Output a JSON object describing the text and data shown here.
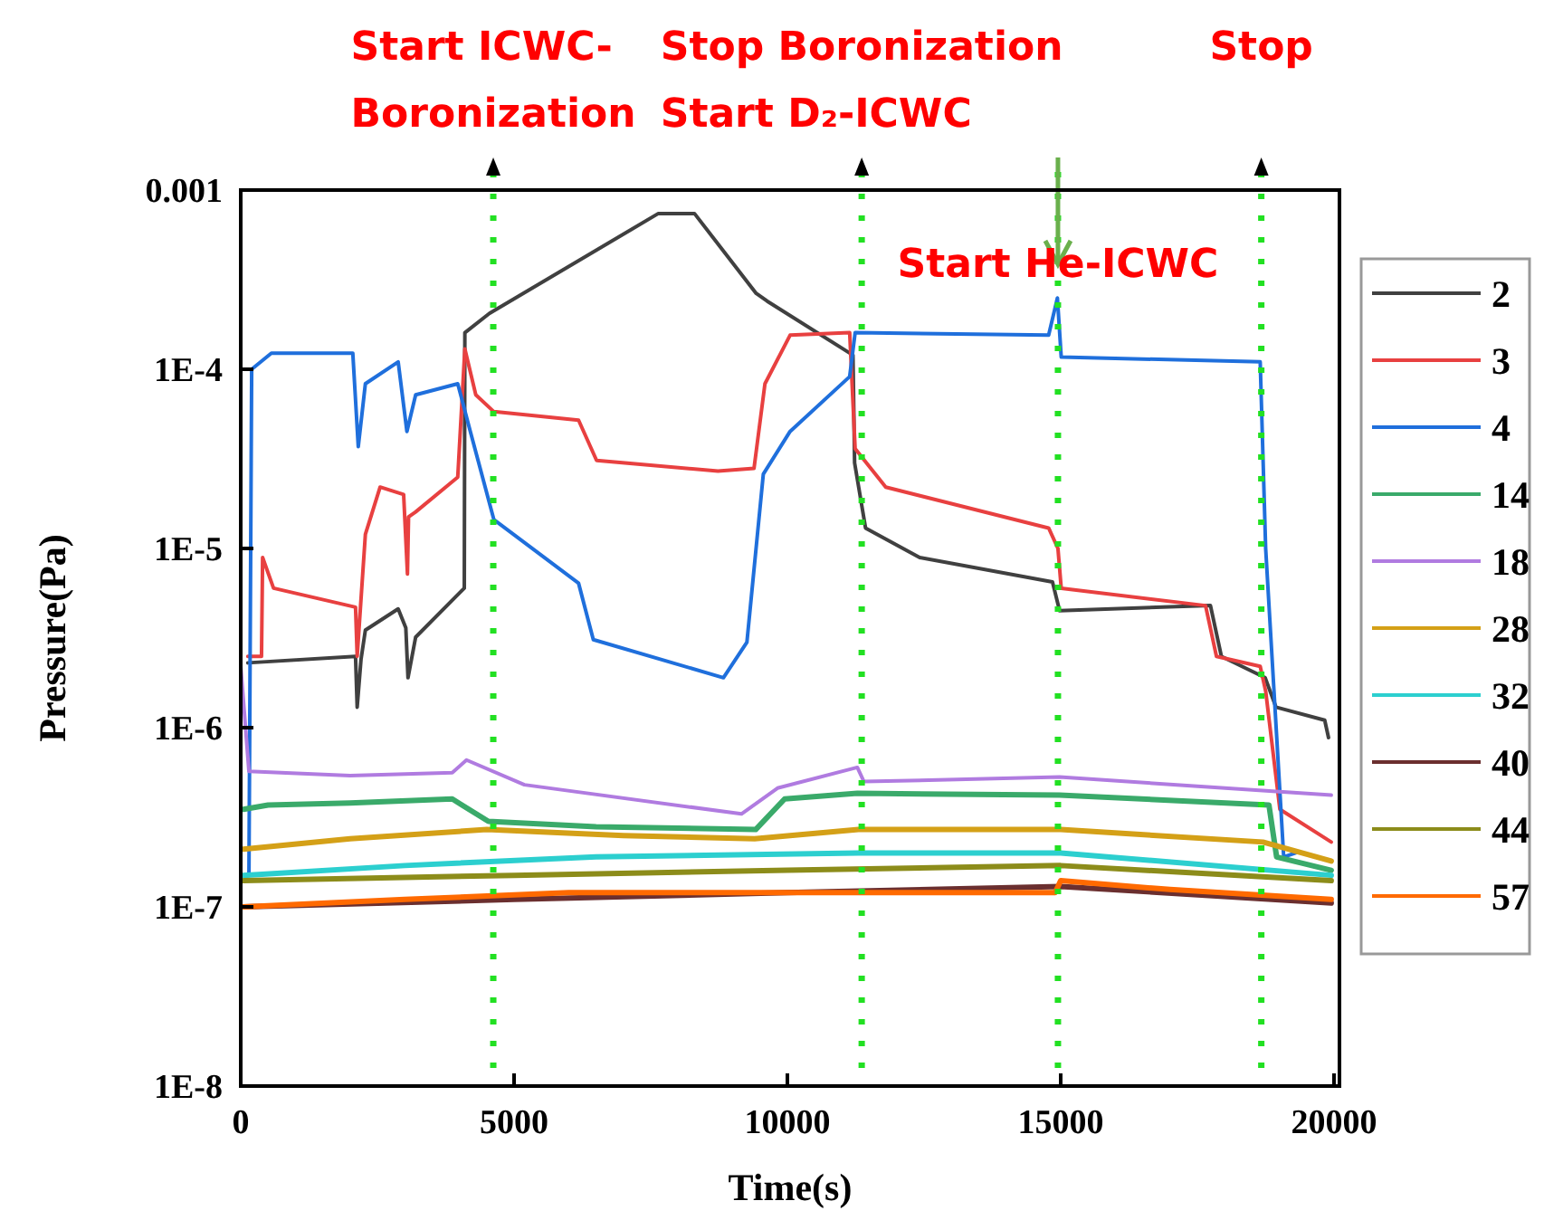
{
  "chart_data": {
    "type": "line",
    "xlabel": "Time(s)",
    "ylabel": "Pressure(Pa)",
    "log": "y",
    "xlim": [
      0,
      20100
    ],
    "ylim": [
      1e-08,
      0.001
    ],
    "xticks": [
      0,
      5000,
      10000,
      15000,
      20000
    ],
    "yticks": [
      {
        "value": 1e-08,
        "label": "1E-8"
      },
      {
        "value": 1e-07,
        "label": "1E-7"
      },
      {
        "value": 1e-06,
        "label": "1E-6"
      },
      {
        "value": 1e-05,
        "label": "1E-5"
      },
      {
        "value": 0.0001,
        "label": "1E-4"
      },
      {
        "value": 0.001,
        "label": "0.001"
      }
    ],
    "legend": "right",
    "line_style": "solid",
    "ref_lines": [
      {
        "axis": "x",
        "value": 4620,
        "label": "Start ICWC-\nBoronization",
        "color": "#22e022",
        "line_style": "dotted"
      },
      {
        "axis": "x",
        "value": 11360,
        "label": "Stop Boronization\nStart D₂-ICWC",
        "color": "#22e022",
        "line_style": "dotted"
      },
      {
        "axis": "x",
        "value": 14950,
        "label": "Start He-ICWC",
        "color": "#22e022",
        "line_style": "dotted"
      },
      {
        "axis": "x",
        "value": 18670,
        "label": "Stop",
        "color": "#22e022",
        "line_style": "dotted"
      }
    ],
    "series": [
      {
        "name": "2",
        "color": "#404040",
        "x": [
          130,
          2100,
          2130,
          2200,
          2280,
          2880,
          3020,
          3060,
          3200,
          3990,
          4090,
          4100,
          4550,
          7640,
          8300,
          9430,
          9630,
          11200,
          11230,
          11430,
          12420,
          14850,
          14980,
          17740,
          17940,
          18740,
          18940,
          19830,
          19900
        ],
        "values": [
          2.3e-06,
          2.5e-06,
          1.3e-06,
          2.4e-06,
          3.5e-06,
          4.6e-06,
          3.6e-06,
          1.9e-06,
          3.2e-06,
          5.6e-06,
          6e-06,
          0.00016,
          0.000205,
          0.00074,
          0.00074,
          0.000265,
          0.00024,
          0.00012,
          3e-05,
          1.3e-05,
          8.9e-06,
          6.5e-06,
          4.5e-06,
          4.8e-06,
          2.5e-06,
          1.9e-06,
          1.3e-06,
          1.1e-06,
          8.8e-07
        ]
      },
      {
        "name": "3",
        "color": "#e84040",
        "x": [
          130,
          380,
          400,
          600,
          2100,
          2130,
          2280,
          2550,
          2980,
          3050,
          3070,
          3200,
          3970,
          4100,
          4300,
          4630,
          6180,
          6510,
          8730,
          9390,
          9590,
          10050,
          11140,
          11240,
          11800,
          14780,
          14950,
          15010,
          17650,
          17850,
          18650,
          18750,
          19010,
          19950
        ],
        "values": [
          2.5e-06,
          2.5e-06,
          8.9e-06,
          6e-06,
          4.7e-06,
          2.5e-06,
          1.2e-05,
          2.2e-05,
          2e-05,
          7.2e-06,
          1.5e-05,
          1.6e-05,
          2.5e-05,
          0.00013,
          7.2e-05,
          5.8e-05,
          5.2e-05,
          3.1e-05,
          2.7e-05,
          2.8e-05,
          8.3e-05,
          0.000155,
          0.00016,
          3.6e-05,
          2.2e-05,
          1.3e-05,
          1e-05,
          6e-06,
          4.8e-06,
          2.5e-06,
          2.2e-06,
          1.6e-06,
          3.5e-07,
          2.3e-07
        ]
      },
      {
        "name": "4",
        "color": "#1f6fdc",
        "x": [
          50,
          150,
          200,
          560,
          2050,
          2150,
          2280,
          2880,
          3040,
          3200,
          3970,
          4200,
          4630,
          6180,
          6450,
          8830,
          9260,
          9560,
          10050,
          11140,
          11240,
          14780,
          14940,
          15010,
          18650,
          18750,
          19080,
          19300
        ],
        "values": [
          1.5e-07,
          1.5e-07,
          0.0001,
          0.000123,
          0.000123,
          3.7e-05,
          8.3e-05,
          0.00011,
          4.5e-05,
          7.2e-05,
          8.3e-05,
          4.5e-05,
          1.45e-05,
          6.4e-06,
          3.1e-06,
          1.9e-06,
          3e-06,
          2.6e-05,
          4.5e-05,
          9.1e-05,
          0.00016,
          0.000155,
          0.00025,
          0.000117,
          0.00011,
          1e-05,
          1.9e-07,
          2e-07
        ]
      },
      {
        "name": "14",
        "color": "#3aaa6a",
        "x": [
          50,
          500,
          2000,
          3870,
          4530,
          6500,
          9420,
          9950,
          11280,
          14980,
          18810,
          18950,
          19950
        ],
        "values": [
          3.5e-07,
          3.7e-07,
          3.8e-07,
          4e-07,
          3e-07,
          2.8e-07,
          2.7e-07,
          4e-07,
          4.3e-07,
          4.2e-07,
          3.7e-07,
          1.9e-07,
          1.6e-07
        ]
      },
      {
        "name": "18",
        "color": "#b07be0",
        "x": [
          0,
          150,
          2000,
          3870,
          4130,
          5190,
          9160,
          9820,
          11280,
          11400,
          14980,
          19950
        ],
        "values": [
          2.2e-06,
          5.7e-07,
          5.4e-07,
          5.6e-07,
          6.6e-07,
          4.8e-07,
          3.3e-07,
          4.6e-07,
          6e-07,
          5e-07,
          5.3e-07,
          4.2e-07
        ]
      },
      {
        "name": "28",
        "color": "#d4a017",
        "x": [
          50,
          2000,
          4500,
          7000,
          9400,
          11300,
          15000,
          18700,
          19950
        ],
        "values": [
          2.1e-07,
          2.4e-07,
          2.7e-07,
          2.5e-07,
          2.4e-07,
          2.7e-07,
          2.7e-07,
          2.3e-07,
          1.8e-07
        ]
      },
      {
        "name": "32",
        "color": "#2ccfcf",
        "x": [
          50,
          3000,
          6500,
          11300,
          15000,
          19950
        ],
        "values": [
          1.5e-07,
          1.7e-07,
          1.9e-07,
          2e-07,
          2e-07,
          1.5e-07
        ]
      },
      {
        "name": "40",
        "color": "#6b2f2f",
        "x": [
          50,
          5000,
          10000,
          15000,
          19950
        ],
        "values": [
          1e-07,
          1.1e-07,
          1.2e-07,
          1.3e-07,
          1.05e-07
        ]
      },
      {
        "name": "44",
        "color": "#8c8c1a",
        "x": [
          50,
          5000,
          10000,
          15000,
          19950
        ],
        "values": [
          1.4e-07,
          1.5e-07,
          1.6e-07,
          1.7e-07,
          1.4e-07
        ]
      },
      {
        "name": "57",
        "color": "#ff6a00",
        "x": [
          50,
          3000,
          6000,
          10000,
          14900,
          15000,
          17000,
          19950
        ],
        "values": [
          1e-07,
          1.1e-07,
          1.2e-07,
          1.2e-07,
          1.2e-07,
          1.4e-07,
          1.25e-07,
          1.1e-07
        ]
      }
    ]
  }
}
